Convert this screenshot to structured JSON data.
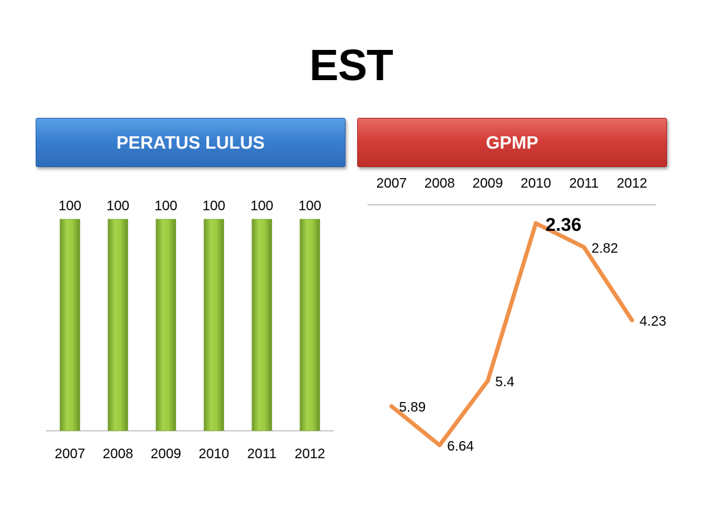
{
  "title": "EST",
  "left_panel": {
    "header": "PERATUS LULUS",
    "color": "#3a7fd0"
  },
  "right_panel": {
    "header": "GPMP",
    "color": "#d43e38"
  },
  "chart_data": [
    {
      "type": "bar",
      "title": "PERATUS LULUS",
      "categories": [
        "2007",
        "2008",
        "2009",
        "2010",
        "2011",
        "2012"
      ],
      "values": [
        100,
        100,
        100,
        100,
        100,
        100
      ],
      "data_labels": [
        "100",
        "100",
        "100",
        "100",
        "100",
        "100"
      ],
      "ylim": [
        0,
        100
      ],
      "bar_color": "#8ab83a",
      "grid": false
    },
    {
      "type": "line",
      "title": "GPMP",
      "categories": [
        "2007",
        "2008",
        "2009",
        "2010",
        "2011",
        "2012"
      ],
      "values": [
        5.89,
        6.64,
        5.4,
        2.36,
        2.82,
        4.23
      ],
      "data_labels": [
        "5.89",
        "6.64",
        "5.4",
        "2.36",
        "2.82",
        "4.23"
      ],
      "highlight": "2.36",
      "y_axis_reversed": true,
      "x_axis_position": "top",
      "line_color": "#f0914a",
      "grid": false
    }
  ]
}
